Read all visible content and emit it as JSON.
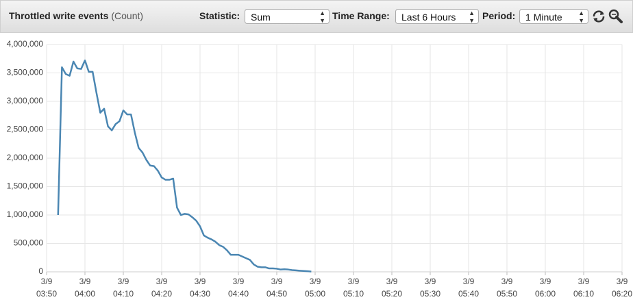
{
  "toolbar": {
    "title": "Throttled write events",
    "unit": "(Count)",
    "statistic_label": "Statistic:",
    "statistic": "Sum",
    "time_range_label": "Time Range:",
    "time_range": "Last 6 Hours",
    "period_label": "Period:",
    "period": "1 Minute"
  },
  "chart_data": {
    "type": "line",
    "color": "#4a86b2",
    "grid": true,
    "x": [
      "3/9 03:53",
      "3/9 03:54",
      "3/9 03:55",
      "3/9 03:56",
      "3/9 03:57",
      "3/9 03:58",
      "3/9 03:59",
      "3/9 04:00",
      "3/9 04:01",
      "3/9 04:02",
      "3/9 04:03",
      "3/9 04:04",
      "3/9 04:05",
      "3/9 04:06",
      "3/9 04:07",
      "3/9 04:08",
      "3/9 04:09",
      "3/9 04:10",
      "3/9 04:11",
      "3/9 04:12",
      "3/9 04:13",
      "3/9 04:14",
      "3/9 04:15",
      "3/9 04:16",
      "3/9 04:17",
      "3/9 04:18",
      "3/9 04:19",
      "3/9 04:20",
      "3/9 04:21",
      "3/9 04:22",
      "3/9 04:23",
      "3/9 04:24",
      "3/9 04:25",
      "3/9 04:26",
      "3/9 04:27",
      "3/9 04:28",
      "3/9 04:29",
      "3/9 04:30",
      "3/9 04:31",
      "3/9 04:32",
      "3/9 04:33",
      "3/9 04:34",
      "3/9 04:35",
      "3/9 04:36",
      "3/9 04:37",
      "3/9 04:38",
      "3/9 04:39",
      "3/9 04:40",
      "3/9 04:41",
      "3/9 04:42",
      "3/9 04:43",
      "3/9 04:44",
      "3/9 04:45",
      "3/9 04:46",
      "3/9 04:47",
      "3/9 04:48",
      "3/9 04:49",
      "3/9 04:50",
      "3/9 04:51",
      "3/9 04:52",
      "3/9 04:53",
      "3/9 04:54",
      "3/9 04:55",
      "3/9 04:56",
      "3/9 04:57",
      "3/9 04:58",
      "3/9 04:59"
    ],
    "values": [
      1000000,
      3600000,
      3480000,
      3450000,
      3700000,
      3580000,
      3570000,
      3720000,
      3520000,
      3520000,
      3150000,
      2800000,
      2870000,
      2560000,
      2490000,
      2600000,
      2650000,
      2840000,
      2770000,
      2770000,
      2450000,
      2180000,
      2100000,
      1970000,
      1870000,
      1860000,
      1780000,
      1660000,
      1620000,
      1620000,
      1640000,
      1130000,
      1000000,
      1020000,
      1010000,
      960000,
      900000,
      800000,
      640000,
      600000,
      570000,
      530000,
      470000,
      440000,
      380000,
      300000,
      300000,
      300000,
      270000,
      240000,
      210000,
      130000,
      90000,
      80000,
      80000,
      60000,
      60000,
      55000,
      40000,
      45000,
      40000,
      30000,
      25000,
      20000,
      15000,
      10000,
      5000
    ],
    "xlim": [
      "3/9 03:50",
      "3/9 06:20"
    ],
    "xticks": [
      "3/9 03:50",
      "3/9 04:00",
      "3/9 04:10",
      "3/9 04:20",
      "3/9 04:30",
      "3/9 04:40",
      "3/9 04:50",
      "3/9 05:00",
      "3/9 05:10",
      "3/9 05:20",
      "3/9 05:30",
      "3/9 05:40",
      "3/9 05:50",
      "3/9 06:00",
      "3/9 06:10",
      "3/9 06:20"
    ],
    "ylim": [
      0,
      4000000
    ],
    "yticks": [
      0,
      {
        "value": 500000,
        "label": "500,000"
      },
      {
        "value": 1000000,
        "label": "1,000,000"
      },
      {
        "value": 1500000,
        "label": "1,500,000"
      },
      {
        "value": 2000000,
        "label": "2,000,000"
      },
      {
        "value": 2500000,
        "label": "2,500,000"
      },
      {
        "value": 3000000,
        "label": "3,000,000"
      },
      {
        "value": 3500000,
        "label": "3,500,000"
      },
      {
        "value": 4000000,
        "label": "4,000,000"
      }
    ]
  }
}
